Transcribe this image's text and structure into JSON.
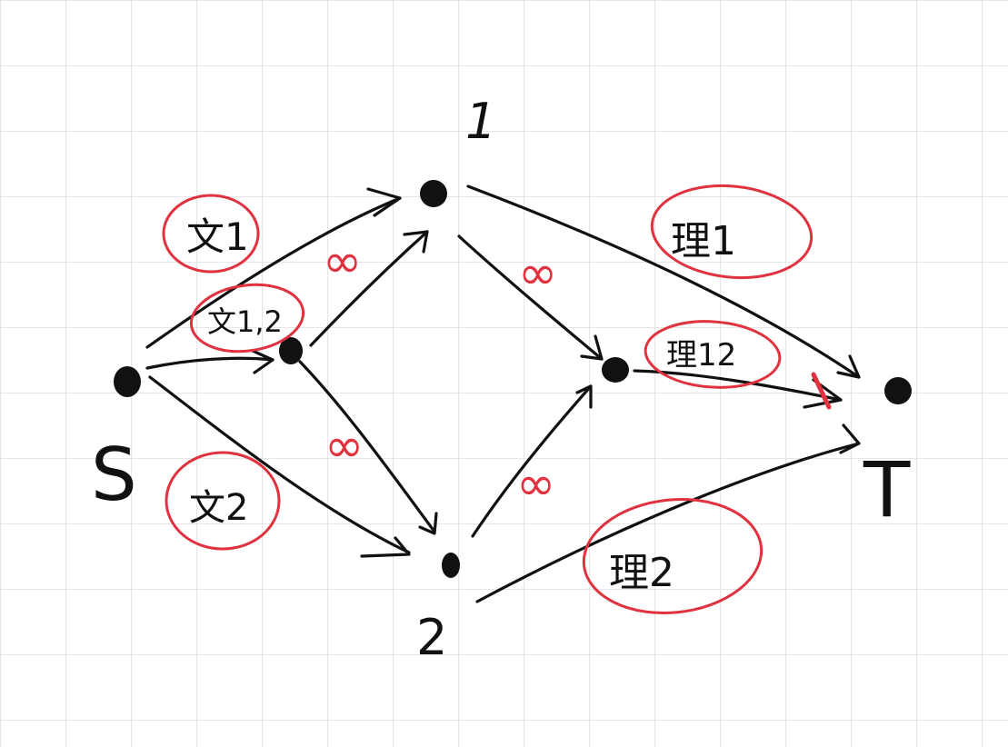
{
  "labels": {
    "source": "S",
    "sink": "T",
    "top_node": "1",
    "bottom_node": "2",
    "wen1": "文1",
    "wen12": "文1,2",
    "wen2": "文2",
    "li1": "理1",
    "li12": "理12",
    "li2": "理2",
    "inf": "∞"
  },
  "colors": {
    "ink": "#111111",
    "highlight": "#e0323f",
    "grid": "#e6e6e6"
  }
}
